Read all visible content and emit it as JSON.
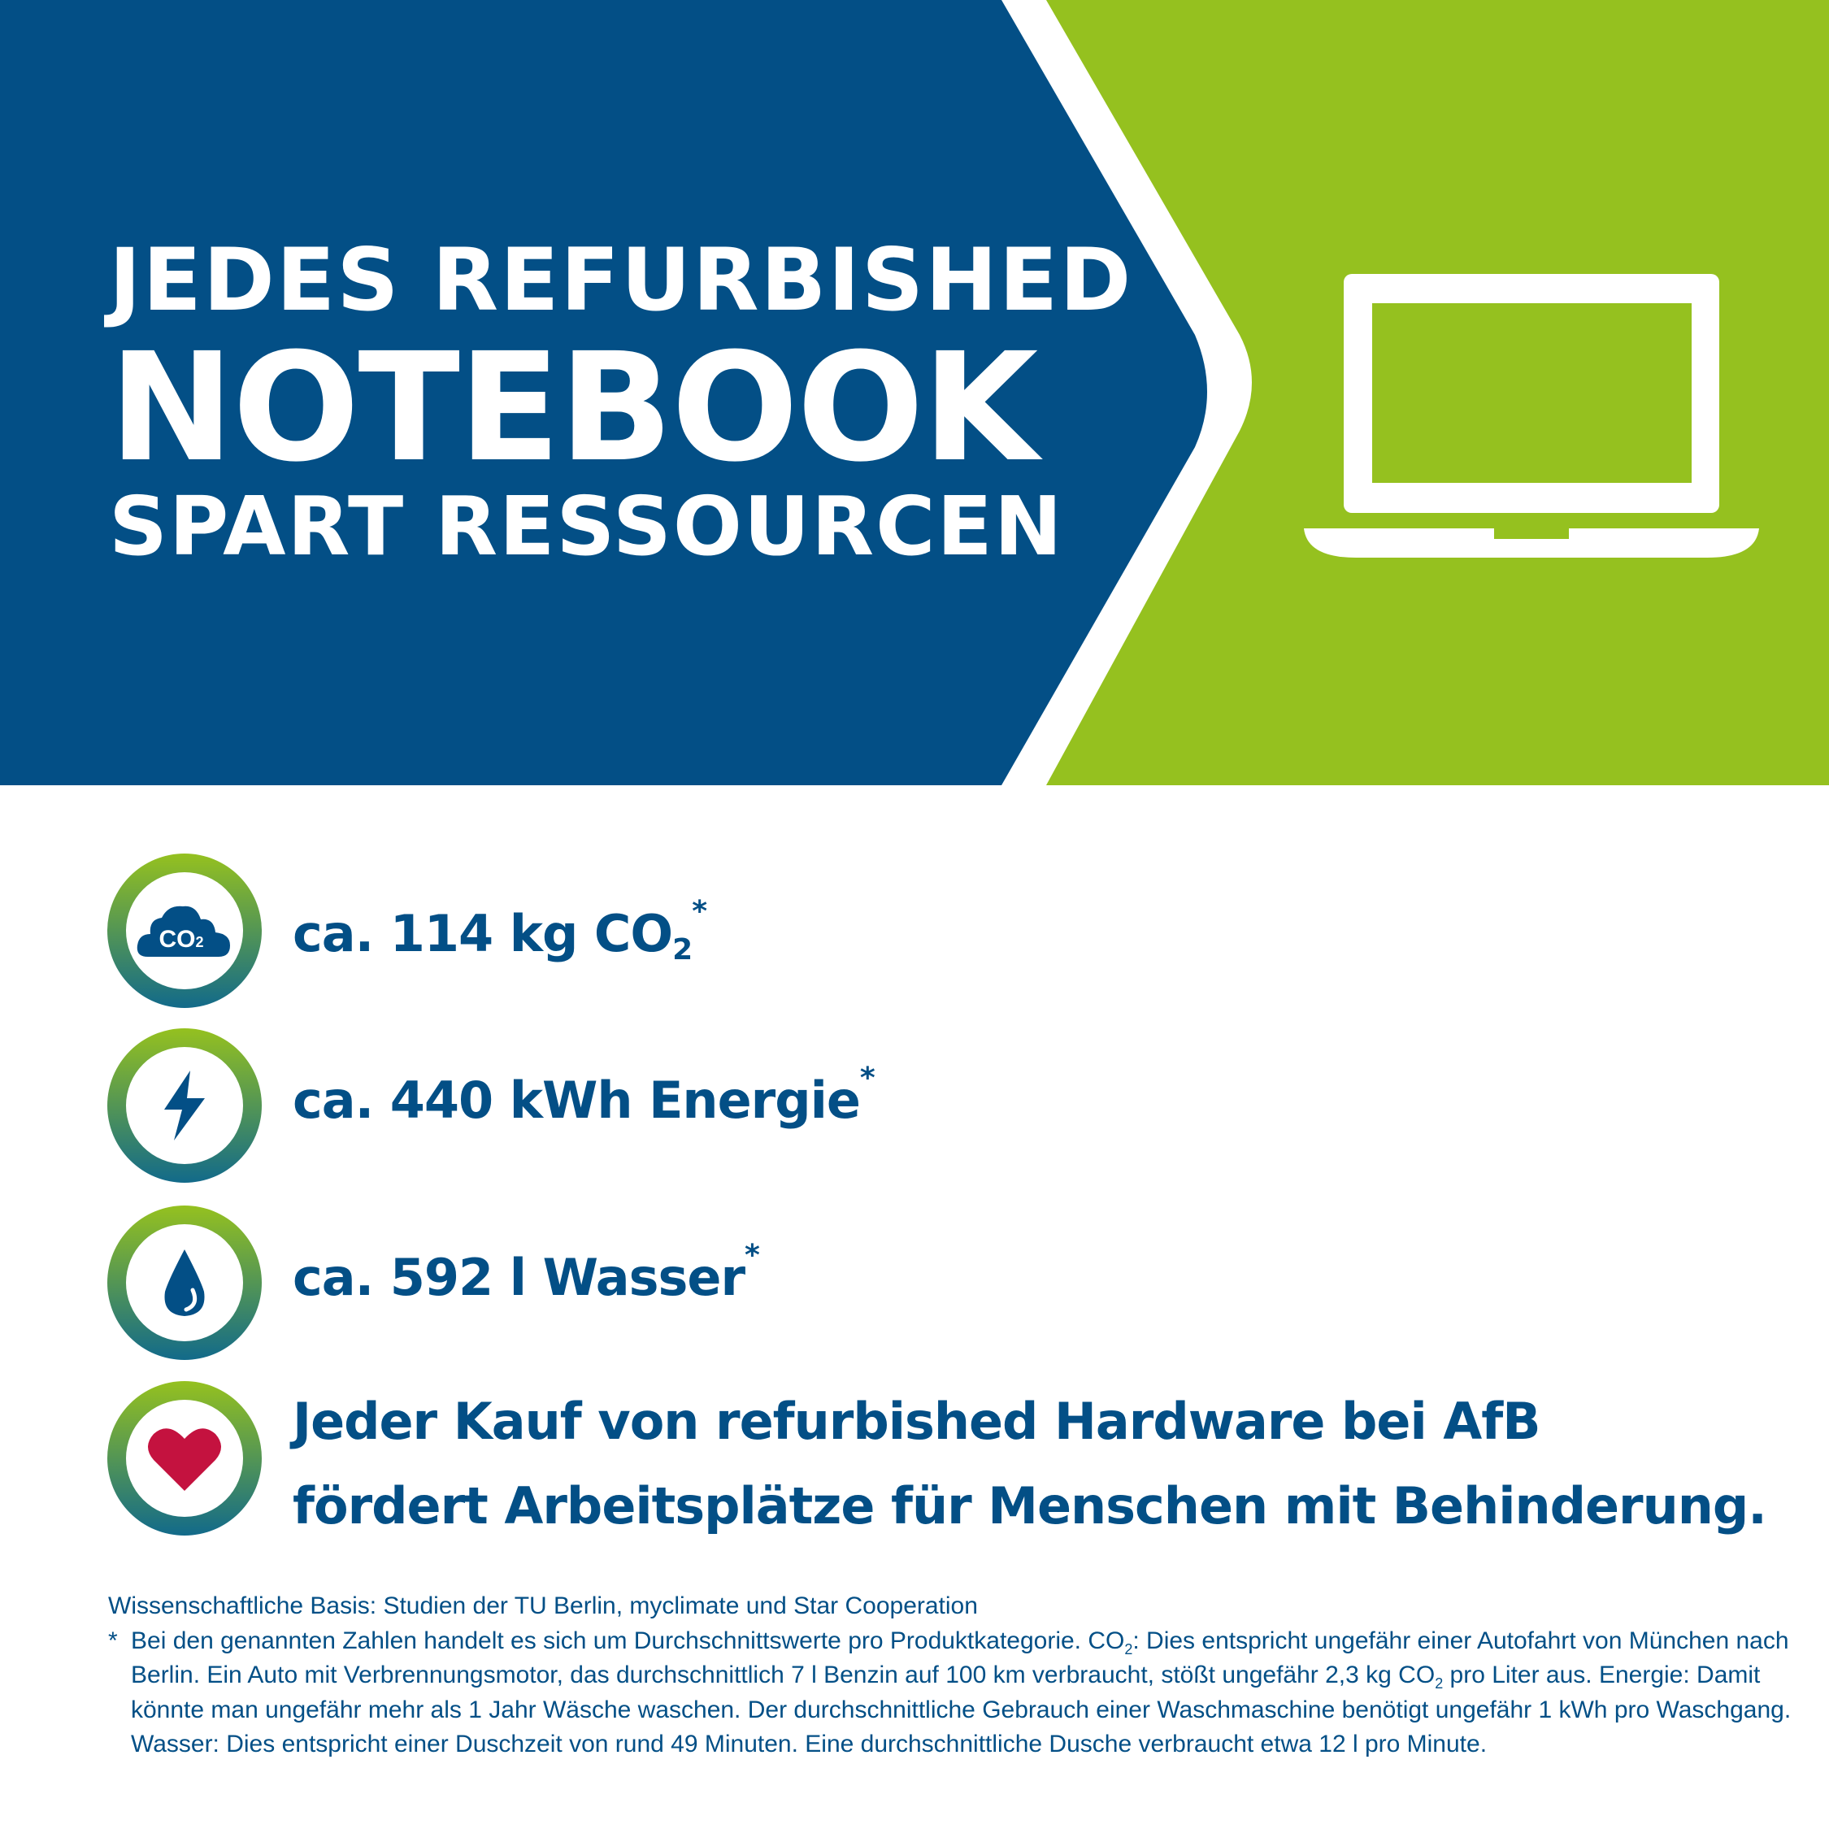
{
  "colors": {
    "blue": "#034f86",
    "green": "#95c11f",
    "heart": "#c4123f"
  },
  "header": {
    "line1": "JEDES REFURBISHED",
    "line2": "NOTEBOOK",
    "line3": "SPART RESSOURCEN",
    "icon": "laptop-icon"
  },
  "stats": [
    {
      "icon": "co2-cloud-icon",
      "icon_text": "CO",
      "icon_sub": "2",
      "prefix": "ca. 114 kg CO",
      "sub": "2",
      "mark": "*"
    },
    {
      "icon": "lightning-icon",
      "text": "ca. 440 kWh Energie",
      "mark": "*"
    },
    {
      "icon": "water-drop-icon",
      "text": "ca. 592 l Wasser",
      "mark": "*"
    },
    {
      "icon": "heart-icon",
      "line1": "Jeder Kauf von refurbished Hardware bei AfB",
      "line2": "fördert Arbeitsplätze für Menschen mit Behinderung."
    }
  ],
  "footnote": {
    "basis": "Wissenschaftliche Basis: Studien der TU Berlin, myclimate und Star Cooperation",
    "star": "*",
    "p1": "Bei den genannten Zahlen handelt es sich um Durchschnittswerte pro Produktkategorie. CO",
    "s1": "2",
    "p2": ": Dies entspricht ungefähr einer Autofahrt von München nach Berlin. Ein Auto mit Verbrennungsmotor, das durchschnittlich 7 l Benzin auf 100 km verbraucht, stößt ungefähr 2,3 kg CO",
    "s2": "2",
    "p3": " pro Liter aus. Energie: Damit könnte man ungefähr mehr als 1 Jahr Wäsche waschen. Der durchschnittliche Gebrauch einer Waschmaschine benötigt ungefähr 1 kWh pro Waschgang. Wasser: Dies entspricht einer Duschzeit von rund 49 Minuten. Eine durchschnittliche Dusche verbraucht etwa 12 l pro Minute."
  }
}
